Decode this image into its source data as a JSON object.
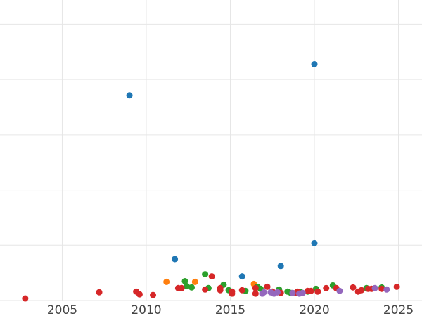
{
  "chart_data": {
    "type": "scatter",
    "title": "",
    "xlabel": "",
    "ylabel": "",
    "xlim": [
      2001.3,
      2026.4
    ],
    "ylim": [
      0,
      435
    ],
    "x_ticks": [
      2005,
      2010,
      2015,
      2020,
      2025
    ],
    "x_tick_labels": [
      "2005",
      "2010",
      "2015",
      "2020",
      "2025"
    ],
    "y_gridlines": [
      0,
      80,
      160,
      240,
      320,
      400
    ],
    "y_tick_labels_visible": false,
    "grid": true,
    "legend": "none",
    "series": [
      {
        "color": "#1f77b4",
        "points": [
          [
            2009.0,
            297
          ],
          [
            2020.0,
            342
          ],
          [
            2011.7,
            60
          ],
          [
            2015.7,
            35
          ],
          [
            2018.0,
            50
          ],
          [
            2020.0,
            83
          ]
        ]
      },
      {
        "color": "#ff7f0e",
        "points": [
          [
            2011.2,
            27
          ],
          [
            2012.9,
            27
          ],
          [
            2016.4,
            24
          ]
        ]
      },
      {
        "color": "#2ca02c",
        "points": [
          [
            2012.3,
            28
          ],
          [
            2012.4,
            21
          ],
          [
            2012.7,
            19
          ],
          [
            2013.5,
            38
          ],
          [
            2013.7,
            18
          ],
          [
            2014.6,
            23
          ],
          [
            2014.9,
            15
          ],
          [
            2015.9,
            14
          ],
          [
            2016.6,
            20
          ],
          [
            2016.8,
            17
          ],
          [
            2017.9,
            16
          ],
          [
            2018.4,
            13
          ],
          [
            2018.6,
            11
          ],
          [
            2019.2,
            12
          ],
          [
            2019.6,
            13
          ],
          [
            2020.1,
            17
          ],
          [
            2021.1,
            22
          ],
          [
            2023.1,
            18
          ],
          [
            2024.0,
            19
          ]
        ]
      },
      {
        "color": "#d62728",
        "points": [
          [
            2002.8,
            3
          ],
          [
            2007.2,
            12
          ],
          [
            2009.4,
            13
          ],
          [
            2009.6,
            9
          ],
          [
            2010.4,
            8
          ],
          [
            2011.9,
            18
          ],
          [
            2012.1,
            18
          ],
          [
            2013.5,
            16
          ],
          [
            2013.9,
            35
          ],
          [
            2014.4,
            15
          ],
          [
            2014.4,
            18
          ],
          [
            2015.1,
            13
          ],
          [
            2015.1,
            10
          ],
          [
            2015.7,
            15
          ],
          [
            2016.5,
            10
          ],
          [
            2016.5,
            18
          ],
          [
            2017.2,
            20
          ],
          [
            2017.5,
            13
          ],
          [
            2017.8,
            12
          ],
          [
            2018.0,
            11
          ],
          [
            2018.9,
            11
          ],
          [
            2019.0,
            13
          ],
          [
            2019.6,
            14
          ],
          [
            2019.8,
            14
          ],
          [
            2020.2,
            13
          ],
          [
            2020.7,
            18
          ],
          [
            2021.3,
            18
          ],
          [
            2022.3,
            19
          ],
          [
            2022.6,
            13
          ],
          [
            2022.8,
            15
          ],
          [
            2023.2,
            17
          ],
          [
            2023.4,
            17
          ],
          [
            2024.0,
            17
          ],
          [
            2024.9,
            20
          ]
        ]
      },
      {
        "color": "#9467bd",
        "points": [
          [
            2016.9,
            10
          ],
          [
            2017.0,
            12
          ],
          [
            2017.4,
            12
          ],
          [
            2017.6,
            10
          ],
          [
            2017.8,
            12
          ],
          [
            2018.7,
            11
          ],
          [
            2019.1,
            10
          ],
          [
            2019.3,
            11
          ],
          [
            2021.5,
            14
          ],
          [
            2023.6,
            18
          ],
          [
            2024.3,
            16
          ]
        ]
      }
    ]
  }
}
